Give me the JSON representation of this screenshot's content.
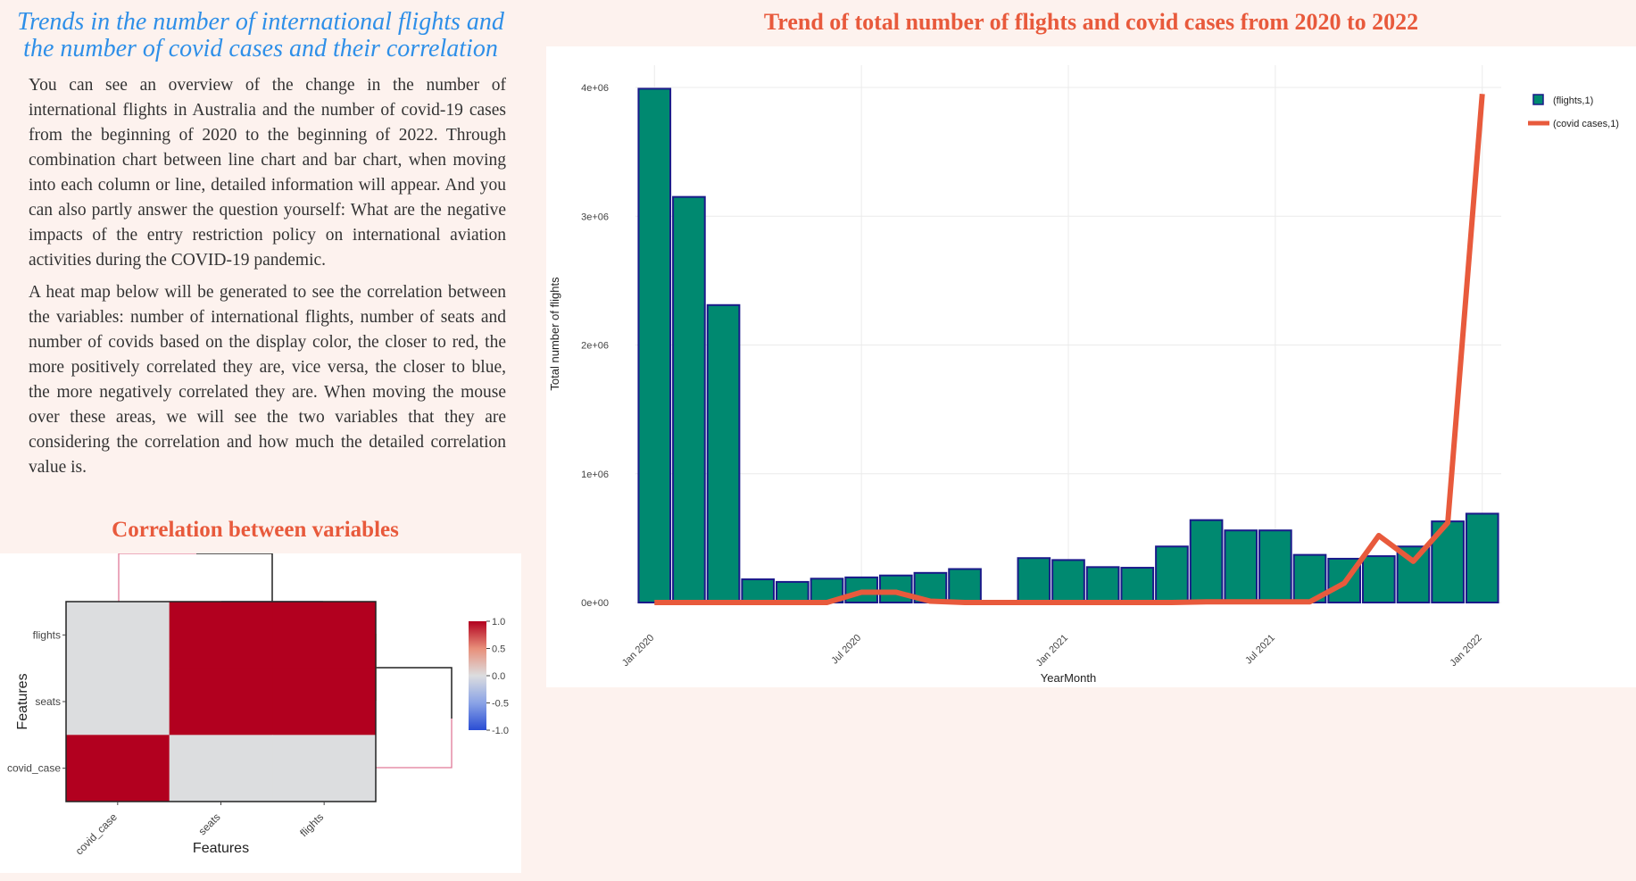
{
  "page": {
    "title": "Trends in the number of international flights and the number of covid cases and their correlation",
    "paragraph1": "You can see an overview of the change in the number of international flights in Australia and the number of covid-19 cases from the beginning of 2020 to the beginning of 2022. Through combination chart between line chart and bar chart, when moving into each column or line, detailed information will appear. And you can also partly answer the question yourself: What are the negative impacts of the entry restriction policy on international aviation activities during the COVID-19 pandemic.",
    "paragraph2": "A heat map below will be generated to see the correlation between the variables: number of international flights, number of seats and number of covids based on the display color, the closer to red, the more positively correlated they are, vice versa, the closer to blue, the more negatively correlated they are. When moving the mouse over these areas, we will see the two variables that they are considering the correlation and how much the detailed correlation value is."
  },
  "colors": {
    "bar_fill": "#008970",
    "bar_edge": "#1a1a8a",
    "line": "#e85a3c",
    "title_red": "#e85a3c",
    "title_blue": "#2e8fe8",
    "heat_pos": "#b2001f",
    "heat_neutral": "#dcdddf",
    "heat_neg": "#2a4dd4"
  },
  "chart_data": [
    {
      "type": "bar",
      "title": "Trend of total number of flights and covid cases from 2020 to 2022",
      "xlabel": "YearMonth",
      "ylabel": "Total number of flights",
      "x": [
        "2020-01",
        "2020-02",
        "2020-03",
        "2020-04",
        "2020-05",
        "2020-06",
        "2020-07",
        "2020-08",
        "2020-09",
        "2020-10",
        "2020-11",
        "2020-12",
        "2021-01",
        "2021-02",
        "2021-03",
        "2021-04",
        "2021-05",
        "2021-06",
        "2021-07",
        "2021-08",
        "2021-09",
        "2021-10",
        "2021-11",
        "2021-12",
        "2022-01"
      ],
      "x_tick_labels": [
        "Jan 2020",
        "Jul 2020",
        "Jan 2021",
        "Jul 2021",
        "Jan 2022"
      ],
      "x_tick_values": [
        "2020-01",
        "2020-07",
        "2021-01",
        "2021-07",
        "2022-01"
      ],
      "y_tick_labels": [
        "0e+00",
        "1e+06",
        "2e+06",
        "3e+06",
        "4e+06"
      ],
      "ylim": [
        0,
        4000000
      ],
      "grid": true,
      "legend_position": "top-right",
      "series": [
        {
          "name": "(flights,1)",
          "kind": "bar",
          "values": [
            3990000,
            3150000,
            2310000,
            180000,
            160000,
            185000,
            195000,
            210000,
            230000,
            260000,
            null,
            345000,
            330000,
            275000,
            270000,
            435000,
            640000,
            560000,
            560000,
            370000,
            340000,
            360000,
            435000,
            630000,
            690000
          ]
        },
        {
          "name": "(covid cases,1)",
          "kind": "line",
          "values": [
            0,
            0,
            0,
            0,
            0,
            0,
            80000,
            80000,
            10000,
            0,
            0,
            0,
            0,
            0,
            0,
            0,
            5000,
            5000,
            5000,
            5000,
            150000,
            520000,
            320000,
            620000,
            3950000
          ]
        }
      ]
    },
    {
      "type": "heatmap",
      "title": "Correlation between variables",
      "xlabel": "Features",
      "ylabel": "Features",
      "x_categories": [
        "covid_case",
        "seats",
        "flights"
      ],
      "y_categories": [
        "flights",
        "seats",
        "covid_case"
      ],
      "values": [
        [
          0,
          1,
          1
        ],
        [
          0,
          1,
          1
        ],
        [
          1,
          0,
          0
        ]
      ],
      "colorbar_ticks": [
        "1.0",
        "0.5",
        "0.0",
        "-0.5",
        "-1.0"
      ],
      "zlim": [
        -1,
        1
      ]
    }
  ]
}
